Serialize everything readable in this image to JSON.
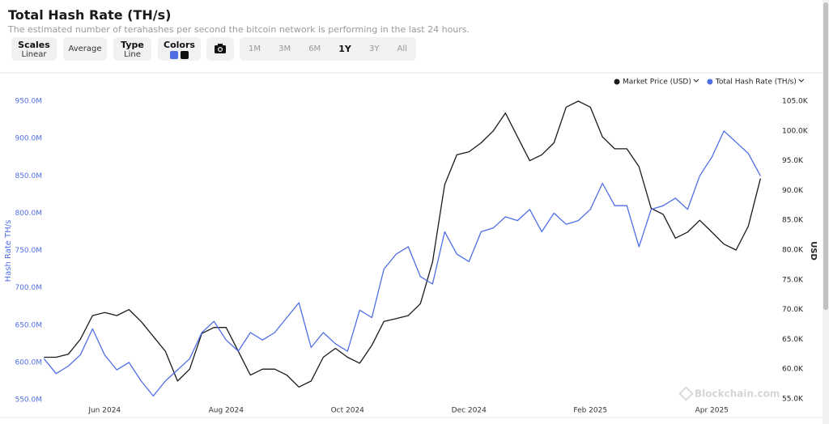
{
  "header": {
    "title": "Total Hash Rate (TH/s)",
    "subtitle": "The estimated number of terahashes per second the bitcoin network is performing in the last 24 hours."
  },
  "controls": [
    {
      "label": "Scales",
      "value": "Linear"
    },
    {
      "label": "Average"
    },
    {
      "label": "Type",
      "value": "Line"
    },
    {
      "label": "Colors"
    }
  ],
  "ranges": [
    {
      "label": "1M"
    },
    {
      "label": "3M"
    },
    {
      "label": "6M"
    },
    {
      "label": "1Y",
      "active": true
    },
    {
      "label": "3Y"
    },
    {
      "label": "All"
    }
  ],
  "chart_data": {
    "type": "line",
    "y_label": "Hash Rate TH/s",
    "y2_label": "USD",
    "watermark": "Blockchain.com",
    "legend": "top-right",
    "grid": false,
    "x": [
      5.0,
      5.2,
      5.4,
      5.6,
      5.8,
      6.0,
      6.2,
      6.4,
      6.6,
      6.8,
      7.0,
      7.2,
      7.4,
      7.6,
      7.8,
      8.0,
      8.2,
      8.4,
      8.6,
      8.8,
      9.0,
      9.2,
      9.4,
      9.6,
      9.8,
      10.0,
      10.2,
      10.4,
      10.6,
      10.8,
      11.0,
      11.2,
      11.4,
      11.6,
      11.8,
      12.0,
      12.2,
      12.4,
      12.6,
      12.8,
      13.0,
      13.2,
      13.4,
      13.6,
      13.8,
      14.0,
      14.2,
      14.4,
      14.6,
      14.8,
      15.0,
      15.2,
      15.4,
      15.6,
      15.8,
      16.0,
      16.2,
      16.4,
      16.6,
      16.8
    ],
    "xlim": [
      5.05,
      17.05
    ],
    "xticks": [
      {
        "value": 6,
        "label": "Jun 2024"
      },
      {
        "value": 8,
        "label": "Aug 2024"
      },
      {
        "value": 10,
        "label": "Oct 2024"
      },
      {
        "value": 12,
        "label": "Dec 2024"
      },
      {
        "value": 14,
        "label": "Feb 2025"
      },
      {
        "value": 16,
        "label": "Apr 2025"
      }
    ],
    "ylim": [
      543500000,
      964100000
    ],
    "yticks": [
      {
        "value": 550000000,
        "label": "550.0M"
      },
      {
        "value": 600000000,
        "label": "600.0M"
      },
      {
        "value": 650000000,
        "label": "650.0M"
      },
      {
        "value": 700000000,
        "label": "700.0M"
      },
      {
        "value": 750000000,
        "label": "750.0M"
      },
      {
        "value": 800000000,
        "label": "800.0M"
      },
      {
        "value": 850000000,
        "label": "850.0M"
      },
      {
        "value": 900000000,
        "label": "900.0M"
      },
      {
        "value": 950000000,
        "label": "950.0M"
      }
    ],
    "y2lim": [
      54050,
      106770
    ],
    "y2ticks": [
      {
        "value": 55000,
        "label": "55.0K"
      },
      {
        "value": 60000,
        "label": "60.0K"
      },
      {
        "value": 65000,
        "label": "65.0K"
      },
      {
        "value": 70000,
        "label": "70.0K"
      },
      {
        "value": 75000,
        "label": "75.0K"
      },
      {
        "value": 80000,
        "label": "80.0K"
      },
      {
        "value": 85000,
        "label": "85.0K"
      },
      {
        "value": 90000,
        "label": "90.0K"
      },
      {
        "value": 95000,
        "label": "95.0K"
      },
      {
        "value": 100000,
        "label": "100.0K"
      },
      {
        "value": 105000,
        "label": "105.0K"
      }
    ],
    "series": [
      {
        "name": "Market Price (USD)",
        "color": "#1a1a1a",
        "axis": "y2",
        "values": [
          62000,
          62000,
          62500,
          65000,
          69000,
          69500,
          69000,
          70000,
          68000,
          65500,
          63000,
          58000,
          60000,
          66000,
          67000,
          67000,
          63000,
          59000,
          60000,
          60000,
          59000,
          57000,
          58000,
          62000,
          63500,
          62000,
          61000,
          64000,
          68000,
          68500,
          69000,
          71000,
          78000,
          91000,
          96000,
          96500,
          98000,
          100000,
          103000,
          99000,
          95000,
          96000,
          98000,
          104000,
          105000,
          104000,
          99000,
          97000,
          97000,
          94000,
          87000,
          86000,
          82000,
          83000,
          85000,
          83000,
          81000,
          80000,
          84000,
          92000
        ]
      },
      {
        "name": "Total Hash Rate (TH/s)",
        "color": "#4f6ee6",
        "values": [
          605000000,
          585000000,
          595000000,
          610000000,
          645000000,
          610000000,
          590000000,
          600000000,
          575000000,
          555000000,
          575000000,
          590000000,
          605000000,
          640000000,
          655000000,
          630000000,
          615000000,
          640000000,
          630000000,
          640000000,
          660000000,
          680000000,
          620000000,
          640000000,
          625000000,
          615000000,
          670000000,
          660000000,
          725000000,
          745000000,
          755000000,
          715000000,
          705000000,
          775000000,
          745000000,
          735000000,
          775000000,
          780000000,
          795000000,
          790000000,
          805000000,
          775000000,
          800000000,
          785000000,
          790000000,
          805000000,
          840000000,
          810000000,
          810000000,
          755000000,
          805000000,
          810000000,
          820000000,
          805000000,
          850000000,
          875000000,
          910000000,
          895000000,
          880000000,
          850000000
        ]
      }
    ]
  }
}
